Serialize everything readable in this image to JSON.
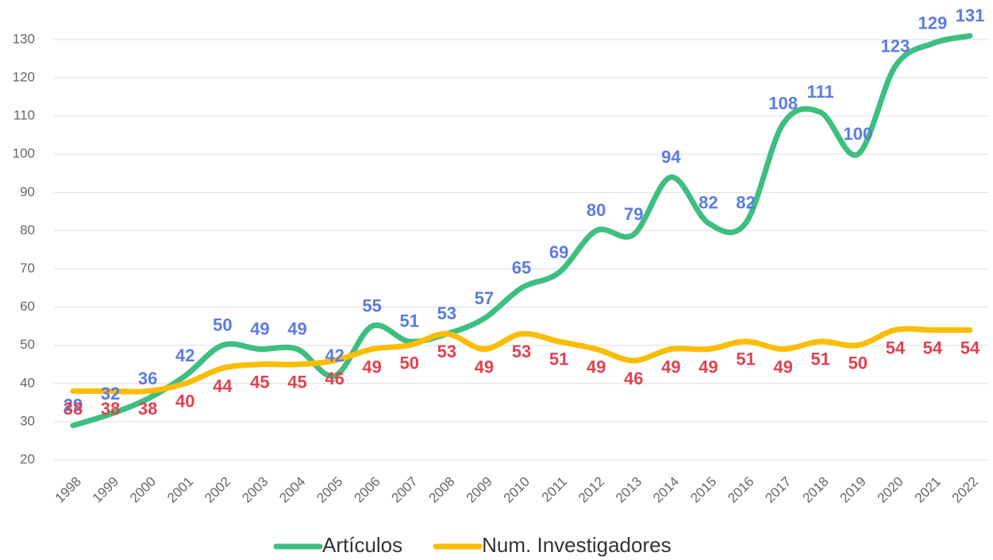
{
  "chart_data": {
    "type": "line",
    "categories": [
      "1998",
      "1999",
      "2000",
      "2001",
      "2002",
      "2003",
      "2004",
      "2005",
      "2006",
      "2007",
      "2008",
      "2009",
      "2010",
      "2011",
      "2012",
      "2013",
      "2014",
      "2015",
      "2016",
      "2017",
      "2018",
      "2019",
      "2020",
      "2021",
      "2022"
    ],
    "series": [
      {
        "name": "Artículos",
        "color": "#3dbf7f",
        "label_color": "#5b7be3",
        "values": [
          29,
          32,
          36,
          42,
          50,
          49,
          49,
          42,
          55,
          51,
          53,
          57,
          65,
          69,
          80,
          79,
          94,
          82,
          82,
          108,
          111,
          100,
          123,
          129,
          131
        ]
      },
      {
        "name": "Num. Investigadores",
        "color": "#fbbc04",
        "label_color": "#e0424f",
        "values": [
          38,
          38,
          38,
          40,
          44,
          45,
          45,
          46,
          49,
          50,
          53,
          49,
          53,
          51,
          49,
          46,
          49,
          49,
          51,
          49,
          51,
          50,
          54,
          54,
          54
        ]
      }
    ],
    "ylim": [
      20,
      133
    ],
    "yticks": [
      20,
      30,
      40,
      50,
      60,
      70,
      80,
      90,
      100,
      110,
      120,
      130
    ],
    "grid": true,
    "legend": "bottom"
  }
}
